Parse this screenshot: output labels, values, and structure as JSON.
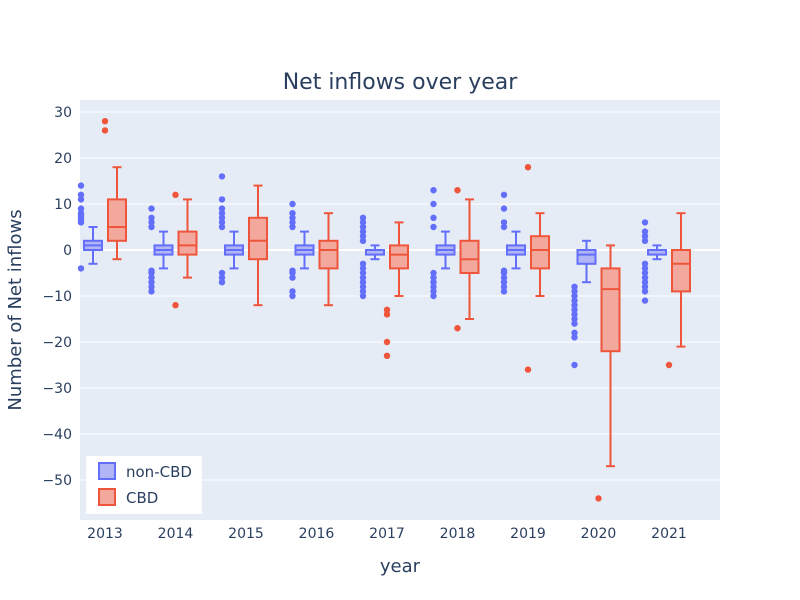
{
  "chart_data": {
    "type": "box",
    "title": "Net inflows over year",
    "xlabel": "year",
    "ylabel": "Number of Net inflows",
    "categories": [
      "2013",
      "2014",
      "2015",
      "2016",
      "2017",
      "2018",
      "2019",
      "2020",
      "2021"
    ],
    "yticks": [
      30,
      20,
      10,
      0,
      -10,
      -20,
      -30,
      -40,
      -50
    ],
    "ylim": [
      -58,
      32
    ],
    "grid": true,
    "legend_position": "bottom-left",
    "series": [
      {
        "name": "non-CBD",
        "color": "#636efa",
        "fill": "#b1b5f5",
        "boxes": [
          {
            "q1": 0,
            "median": 1,
            "q3": 2,
            "low": -3,
            "high": 5,
            "outliers": [
              -4,
              6,
              6.5,
              7,
              7.5,
              8,
              9,
              11,
              12,
              14
            ]
          },
          {
            "q1": -1,
            "median": 0,
            "q3": 1,
            "low": -4,
            "high": 4,
            "outliers": [
              -9,
              -8,
              -7,
              -6,
              -5,
              -4.5,
              5,
              6,
              7,
              9
            ]
          },
          {
            "q1": -1,
            "median": 0,
            "q3": 1,
            "low": -4,
            "high": 4,
            "outliers": [
              -7,
              -6,
              -5,
              5,
              6,
              7,
              8,
              9,
              11,
              16
            ]
          },
          {
            "q1": -1,
            "median": 0,
            "q3": 1,
            "low": -4,
            "high": 4,
            "outliers": [
              -10,
              -9,
              -6,
              -5,
              -4.5,
              5,
              6,
              7,
              8,
              10
            ]
          },
          {
            "q1": -1,
            "median": 0,
            "q3": 0,
            "low": -2,
            "high": 1,
            "outliers": [
              -10,
              -9,
              -8,
              -7,
              -6,
              -5,
              -4,
              -3,
              2,
              3,
              4,
              5,
              6,
              7
            ]
          },
          {
            "q1": -1,
            "median": 0,
            "q3": 1,
            "low": -4,
            "high": 4,
            "outliers": [
              -10,
              -9,
              -8,
              -7,
              -6,
              -5,
              5,
              7,
              10,
              13
            ]
          },
          {
            "q1": -1,
            "median": 0,
            "q3": 1,
            "low": -4,
            "high": 4,
            "outliers": [
              -9,
              -8,
              -7,
              -6,
              -5,
              -4.5,
              5,
              6,
              9,
              12
            ]
          },
          {
            "q1": -3,
            "median": -1,
            "q3": 0,
            "low": -7,
            "high": 2,
            "outliers": [
              -25,
              -19,
              -18,
              -16,
              -15,
              -14,
              -13,
              -12,
              -11,
              -10,
              -9,
              -8
            ]
          },
          {
            "q1": -1,
            "median": 0,
            "q3": 0,
            "low": -2,
            "high": 1,
            "outliers": [
              -11,
              -9,
              -8,
              -7,
              -6,
              -5,
              -4,
              -3,
              2,
              3,
              4,
              6
            ]
          }
        ]
      },
      {
        "name": "CBD",
        "color": "#ef553b",
        "fill": "#f2a89c",
        "boxes": [
          {
            "q1": 2,
            "median": 5,
            "q3": 11,
            "low": -2,
            "high": 18,
            "outliers": [
              26,
              28
            ]
          },
          {
            "q1": -1,
            "median": 1,
            "q3": 4,
            "low": -6,
            "high": 11,
            "outliers": [
              -12,
              12
            ]
          },
          {
            "q1": -2,
            "median": 2,
            "q3": 7,
            "low": -12,
            "high": 14,
            "outliers": []
          },
          {
            "q1": -4,
            "median": 0,
            "q3": 2,
            "low": -12,
            "high": 8,
            "outliers": []
          },
          {
            "q1": -4,
            "median": -1,
            "q3": 1,
            "low": -10,
            "high": 6,
            "outliers": [
              -23,
              -20,
              -14,
              -13
            ]
          },
          {
            "q1": -5,
            "median": -2,
            "q3": 2,
            "low": -15,
            "high": 11,
            "outliers": [
              -17,
              13
            ]
          },
          {
            "q1": -4,
            "median": 0,
            "q3": 3,
            "low": -10,
            "high": 8,
            "outliers": [
              -26,
              18
            ]
          },
          {
            "q1": -22,
            "median": -8.5,
            "q3": -4,
            "low": -47,
            "high": 1,
            "outliers": [
              -54
            ]
          },
          {
            "q1": -9,
            "median": -3,
            "q3": 0,
            "low": -21,
            "high": 8,
            "outliers": [
              -25
            ]
          }
        ]
      }
    ]
  }
}
